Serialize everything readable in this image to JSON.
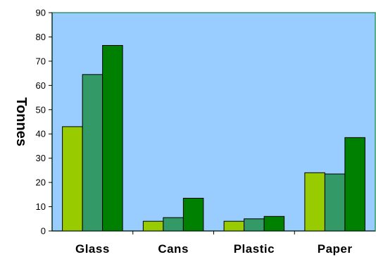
{
  "chart_data": {
    "type": "bar",
    "title": "",
    "xlabel": "",
    "ylabel": "Tonnes",
    "ylim": [
      0,
      90
    ],
    "yticks": [
      "0",
      "10",
      "20",
      "30",
      "40",
      "50",
      "60",
      "70",
      "80",
      "90"
    ],
    "categories": [
      "Glass",
      "Cans",
      "Plastic",
      "Paper"
    ],
    "series": [
      {
        "values": [
          43,
          4,
          4,
          24
        ],
        "color": "#99cc00"
      },
      {
        "values": [
          64.5,
          5.5,
          5,
          23.5
        ],
        "color": "#339966"
      },
      {
        "values": [
          76.5,
          13.5,
          6,
          38.5
        ],
        "color": "#008000"
      }
    ],
    "plot_background": "#99ccff",
    "plot_border_color": "#339966",
    "grid": false,
    "legend": "none"
  }
}
